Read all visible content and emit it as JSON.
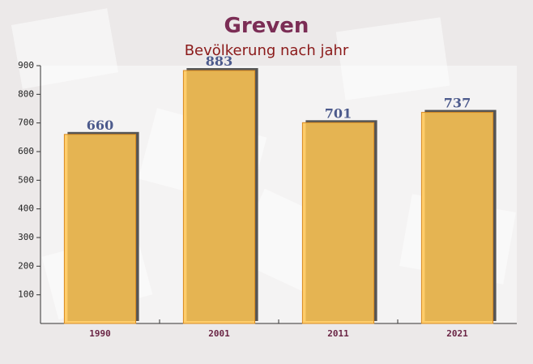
{
  "chart_data": {
    "type": "bar",
    "title": "Greven",
    "subtitle": "Bevölkerung nach jahr",
    "categories": [
      "1990",
      "2001",
      "2011",
      "2021"
    ],
    "values": [
      660,
      883,
      701,
      737
    ],
    "color": "#ffc552",
    "ylim": [
      0,
      900
    ],
    "yticks": [
      100,
      200,
      300,
      400,
      500,
      600,
      700,
      800,
      900
    ]
  }
}
